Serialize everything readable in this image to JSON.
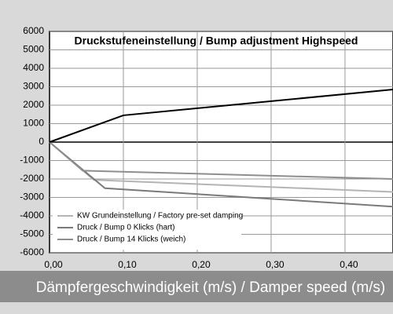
{
  "chart_data": {
    "type": "line",
    "title": "Druckstufeneinstellung / Bump adjustment Highspeed",
    "x_label": "Dämpfergeschwindigkeit (m/s) / Damper speed (m/s)",
    "xlim": [
      0,
      0.465
    ],
    "ylim": [
      -6000,
      6000
    ],
    "xticks": [
      {
        "value": 0,
        "label": "0,00"
      },
      {
        "value": 0.1,
        "label": "0,10"
      },
      {
        "value": 0.2,
        "label": "0,20"
      },
      {
        "value": 0.3,
        "label": "0,30"
      },
      {
        "value": 0.4,
        "label": "0,40"
      }
    ],
    "yticks": [
      -6000,
      -5000,
      -4000,
      -3000,
      -2000,
      -1000,
      0,
      1000,
      2000,
      3000,
      4000,
      5000,
      6000
    ],
    "grid": true,
    "legend": "lower left",
    "series": [
      {
        "name": "KW Grundeinstellung / Factory pre-set damping",
        "color": "#b4b4b4",
        "x": [
          0,
          0.06,
          0.465
        ],
        "values": [
          0,
          -2050,
          -2700
        ]
      },
      {
        "name": "Druck / Bump 0 Klicks (hart)",
        "color": "#7a7a7a",
        "x": [
          0,
          0.075,
          0.465
        ],
        "values": [
          0,
          -2500,
          -3500
        ]
      },
      {
        "name": "Druck / Bump 14 Klicks (weich)",
        "color": "#8e8e8e",
        "x": [
          0,
          0.045,
          0.465
        ],
        "values": [
          0,
          -1550,
          -2000
        ]
      },
      {
        "name": null,
        "color": "#000000",
        "x": [
          0,
          0.1,
          0.465
        ],
        "values": [
          0,
          1450,
          2850
        ]
      }
    ]
  }
}
